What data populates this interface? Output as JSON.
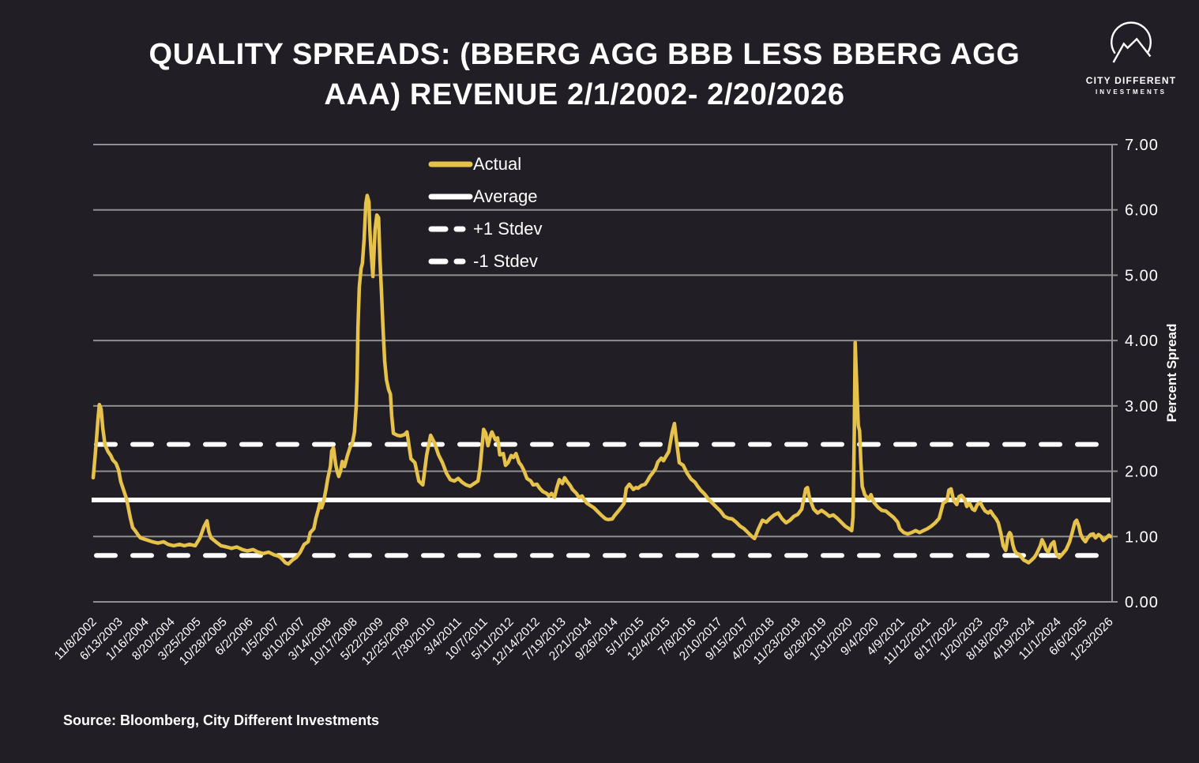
{
  "header": {
    "title_line1": "QUALITY SPREADS: (BBERG AGG BBB LESS BBERG AGG",
    "title_line2": "AAA) REVENUE 2/1/2002- 2/20/2026"
  },
  "logo": {
    "name_line1": "CITY DIFFERENT",
    "name_line2": "INVESTMENTS"
  },
  "footer": {
    "source": "Source: Bloomberg, City Different Investments"
  },
  "colors": {
    "background": "#211f25",
    "actual_line": "#e7c24a",
    "reference_line": "#ffffff",
    "gridline": "#8f8f90",
    "text": "#ffffff"
  },
  "chart_data": {
    "type": "line",
    "title": "QUALITY SPREADS: (BBERG AGG BBB LESS BBERG AGG AAA) REVENUE 2/1/2002- 2/20/2026",
    "ylabel": "Percent Spread",
    "ylim": [
      0.0,
      7.0
    ],
    "yticks": [
      "0.00",
      "1.00",
      "2.00",
      "3.00",
      "4.00",
      "5.00",
      "6.00",
      "7.00"
    ],
    "grid": "horizontal",
    "legend_position": "top-center-inside",
    "xticklabels": [
      "11/8/2002",
      "6/13/2003",
      "1/16/2004",
      "8/20/2004",
      "3/25/2005",
      "10/28/2005",
      "6/2/2006",
      "1/5/2007",
      "8/10/2007",
      "3/14/2008",
      "10/17/2008",
      "5/22/2009",
      "12/25/2009",
      "7/30/2010",
      "3/4/2011",
      "10/7/2011",
      "5/11/2012",
      "12/14/2012",
      "7/19/2013",
      "2/21/2014",
      "9/26/2014",
      "5/1/2015",
      "12/4/2015",
      "7/8/2016",
      "2/10/2017",
      "9/15/2017",
      "4/20/2018",
      "11/23/2018",
      "6/28/2019",
      "1/31/2020",
      "9/4/2020",
      "4/9/2021",
      "11/12/2021",
      "6/17/2022",
      "1/20/2023",
      "8/18/2023",
      "4/19/2024",
      "11/1/2024",
      "6/6/2025",
      "1/23/2026"
    ],
    "xlim_decimal_years": [
      2002.85,
      2026.13
    ],
    "reference_lines": {
      "average": 1.56,
      "plus_1_stdev": 2.41,
      "minus_1_stdev": 0.71
    },
    "legend": [
      {
        "label": "Actual",
        "style": "solid",
        "color": "#e7c24a"
      },
      {
        "label": "Average",
        "style": "solid",
        "color": "#ffffff"
      },
      {
        "label": "+1 Stdev",
        "style": "dashed",
        "color": "#ffffff"
      },
      {
        "label": "-1 Stdev",
        "style": "dashed",
        "color": "#ffffff"
      }
    ],
    "series": [
      {
        "name": "Actual",
        "color": "#e7c24a",
        "x_decimal_years": [
          2002.85,
          2002.89,
          2002.92,
          2002.96,
          2002.99,
          2003.03,
          2003.07,
          2003.12,
          2003.19,
          2003.25,
          2003.3,
          2003.37,
          2003.43,
          2003.48,
          2003.55,
          2003.61,
          2003.64,
          2003.7,
          2003.75,
          2003.82,
          2003.88,
          2003.93,
          2004.02,
          2004.11,
          2004.2,
          2004.33,
          2004.46,
          2004.56,
          2004.69,
          2004.82,
          2004.93,
          2005.05,
          2005.18,
          2005.29,
          2005.38,
          2005.45,
          2005.49,
          2005.54,
          2005.65,
          2005.77,
          2005.9,
          2006.01,
          2006.13,
          2006.26,
          2006.37,
          2006.5,
          2006.62,
          2006.73,
          2006.86,
          2006.98,
          2007.09,
          2007.16,
          2007.24,
          2007.31,
          2007.4,
          2007.49,
          2007.58,
          2007.67,
          2007.76,
          2007.81,
          2007.89,
          2007.94,
          2007.99,
          2008.03,
          2008.07,
          2008.12,
          2008.17,
          2008.21,
          2008.27,
          2008.3,
          2008.34,
          2008.39,
          2008.43,
          2008.46,
          2008.5,
          2008.54,
          2008.59,
          2008.66,
          2008.72,
          2008.77,
          2008.82,
          2008.86,
          2008.88,
          2008.9,
          2008.93,
          2008.97,
          2009.0,
          2009.04,
          2009.08,
          2009.11,
          2009.15,
          2009.17,
          2009.2,
          2009.24,
          2009.29,
          2009.33,
          2009.37,
          2009.4,
          2009.44,
          2009.47,
          2009.51,
          2009.55,
          2009.6,
          2009.64,
          2009.67,
          2009.71,
          2009.8,
          2009.87,
          2009.96,
          2010.02,
          2010.11,
          2010.2,
          2010.29,
          2010.38,
          2010.47,
          2010.56,
          2010.65,
          2010.74,
          2010.83,
          2010.92,
          2011.01,
          2011.1,
          2011.19,
          2011.28,
          2011.37,
          2011.46,
          2011.55,
          2011.64,
          2011.69,
          2011.77,
          2011.82,
          2011.87,
          2011.93,
          2011.96,
          2012.04,
          2012.09,
          2012.14,
          2012.22,
          2012.27,
          2012.33,
          2012.4,
          2012.45,
          2012.51,
          2012.58,
          2012.63,
          2012.69,
          2012.76,
          2012.85,
          2012.9,
          2012.99,
          2013.05,
          2013.12,
          2013.21,
          2013.26,
          2013.32,
          2013.39,
          2013.44,
          2013.5,
          2013.57,
          2013.62,
          2013.68,
          2013.75,
          2013.8,
          2013.89,
          2013.95,
          2014.02,
          2014.07,
          2014.13,
          2014.2,
          2014.29,
          2014.38,
          2014.47,
          2014.56,
          2014.62,
          2014.71,
          2014.76,
          2014.85,
          2014.92,
          2014.98,
          2015.03,
          2015.1,
          2015.19,
          2015.25,
          2015.3,
          2015.37,
          2015.46,
          2015.52,
          2015.57,
          2015.64,
          2015.7,
          2015.75,
          2015.83,
          2015.88,
          2015.93,
          2016.0,
          2016.04,
          2016.08,
          2016.13,
          2016.18,
          2016.24,
          2016.33,
          2016.42,
          2016.51,
          2016.6,
          2016.66,
          2016.73,
          2016.82,
          2016.91,
          2017.0,
          2017.09,
          2017.18,
          2017.27,
          2017.36,
          2017.45,
          2017.54,
          2017.63,
          2017.72,
          2017.81,
          2017.9,
          2017.96,
          2018.05,
          2018.14,
          2018.23,
          2018.32,
          2018.41,
          2018.5,
          2018.59,
          2018.68,
          2018.77,
          2018.86,
          2018.95,
          2019.04,
          2019.13,
          2019.17,
          2019.22,
          2019.31,
          2019.4,
          2019.49,
          2019.58,
          2019.67,
          2019.76,
          2019.85,
          2019.94,
          2020.03,
          2020.12,
          2020.18,
          2020.21,
          2020.24,
          2020.26,
          2020.29,
          2020.33,
          2020.36,
          2020.39,
          2020.42,
          2020.48,
          2020.57,
          2020.62,
          2020.69,
          2020.78,
          2020.87,
          2020.96,
          2021.05,
          2021.14,
          2021.23,
          2021.28,
          2021.37,
          2021.46,
          2021.55,
          2021.64,
          2021.73,
          2021.82,
          2021.91,
          2022.0,
          2022.09,
          2022.18,
          2022.27,
          2022.36,
          2022.4,
          2022.45,
          2022.51,
          2022.58,
          2022.63,
          2022.69,
          2022.76,
          2022.81,
          2022.87,
          2022.94,
          2022.99,
          2023.05,
          2023.12,
          2023.17,
          2023.23,
          2023.3,
          2023.35,
          2023.41,
          2023.48,
          2023.53,
          2023.59,
          2023.64,
          2023.7,
          2023.75,
          2023.79,
          2023.82,
          2023.86,
          2023.9,
          2023.95,
          2024.0,
          2024.06,
          2024.11,
          2024.17,
          2024.22,
          2024.29,
          2024.35,
          2024.4,
          2024.45,
          2024.49,
          2024.53,
          2024.58,
          2024.62,
          2024.67,
          2024.74,
          2024.8,
          2024.85,
          2024.92,
          2024.98,
          2025.03,
          2025.08,
          2025.16,
          2025.21,
          2025.28,
          2025.32,
          2025.37,
          2025.41,
          2025.46,
          2025.52,
          2025.57,
          2025.64,
          2025.7,
          2025.75,
          2025.82,
          2025.88,
          2025.93,
          2026.0,
          2026.06,
          2026.09
        ],
        "values": [
          1.9,
          2.2,
          2.45,
          2.8,
          3.02,
          2.95,
          2.65,
          2.4,
          2.3,
          2.24,
          2.17,
          2.12,
          2.02,
          1.84,
          1.7,
          1.58,
          1.48,
          1.28,
          1.14,
          1.08,
          1.02,
          0.98,
          0.96,
          0.94,
          0.92,
          0.9,
          0.92,
          0.88,
          0.86,
          0.88,
          0.86,
          0.88,
          0.86,
          0.98,
          1.15,
          1.24,
          1.08,
          0.98,
          0.92,
          0.86,
          0.84,
          0.82,
          0.84,
          0.8,
          0.78,
          0.8,
          0.76,
          0.74,
          0.76,
          0.72,
          0.7,
          0.66,
          0.6,
          0.58,
          0.64,
          0.68,
          0.76,
          0.88,
          0.92,
          1.06,
          1.12,
          1.28,
          1.4,
          1.51,
          1.44,
          1.55,
          1.73,
          1.89,
          2.07,
          2.31,
          2.36,
          2.1,
          1.98,
          1.92,
          2.0,
          2.15,
          2.07,
          2.24,
          2.37,
          2.42,
          2.6,
          3.0,
          3.4,
          4.2,
          4.82,
          5.1,
          5.18,
          5.55,
          6.1,
          6.22,
          6.12,
          5.7,
          5.34,
          4.98,
          5.7,
          5.92,
          5.88,
          5.26,
          4.68,
          4.22,
          3.69,
          3.4,
          3.25,
          3.18,
          2.85,
          2.58,
          2.55,
          2.54,
          2.56,
          2.6,
          2.19,
          2.13,
          1.85,
          1.79,
          2.25,
          2.55,
          2.43,
          2.25,
          2.13,
          1.97,
          1.87,
          1.85,
          1.89,
          1.83,
          1.79,
          1.77,
          1.81,
          1.85,
          2.05,
          2.64,
          2.58,
          2.39,
          2.55,
          2.6,
          2.48,
          2.51,
          2.25,
          2.27,
          2.09,
          2.13,
          2.24,
          2.21,
          2.27,
          2.13,
          2.09,
          2.01,
          1.89,
          1.85,
          1.79,
          1.8,
          1.74,
          1.69,
          1.66,
          1.62,
          1.66,
          1.6,
          1.74,
          1.87,
          1.81,
          1.9,
          1.84,
          1.78,
          1.72,
          1.66,
          1.6,
          1.62,
          1.56,
          1.51,
          1.48,
          1.44,
          1.38,
          1.32,
          1.27,
          1.26,
          1.27,
          1.32,
          1.39,
          1.45,
          1.51,
          1.74,
          1.8,
          1.72,
          1.75,
          1.74,
          1.78,
          1.8,
          1.86,
          1.92,
          1.98,
          2.04,
          2.14,
          2.2,
          2.16,
          2.22,
          2.3,
          2.45,
          2.6,
          2.73,
          2.45,
          2.13,
          2.09,
          1.97,
          1.88,
          1.83,
          1.77,
          1.71,
          1.65,
          1.57,
          1.51,
          1.45,
          1.39,
          1.31,
          1.28,
          1.27,
          1.22,
          1.16,
          1.12,
          1.06,
          1.0,
          0.97,
          1.12,
          1.25,
          1.22,
          1.28,
          1.33,
          1.36,
          1.27,
          1.21,
          1.25,
          1.31,
          1.34,
          1.42,
          1.73,
          1.75,
          1.58,
          1.42,
          1.36,
          1.4,
          1.36,
          1.31,
          1.33,
          1.28,
          1.22,
          1.16,
          1.12,
          1.09,
          1.3,
          2.6,
          3.97,
          3.4,
          2.7,
          2.62,
          2.13,
          1.77,
          1.64,
          1.57,
          1.64,
          1.52,
          1.45,
          1.4,
          1.39,
          1.34,
          1.29,
          1.22,
          1.12,
          1.06,
          1.04,
          1.06,
          1.09,
          1.06,
          1.09,
          1.12,
          1.16,
          1.21,
          1.28,
          1.51,
          1.55,
          1.71,
          1.73,
          1.55,
          1.49,
          1.61,
          1.63,
          1.57,
          1.46,
          1.51,
          1.42,
          1.4,
          1.49,
          1.52,
          1.45,
          1.39,
          1.36,
          1.39,
          1.33,
          1.27,
          1.21,
          1.04,
          0.86,
          0.79,
          1.0,
          1.06,
          1.03,
          0.88,
          0.79,
          0.74,
          0.73,
          0.68,
          0.64,
          0.62,
          0.6,
          0.64,
          0.68,
          0.73,
          0.8,
          0.86,
          0.95,
          0.88,
          0.8,
          0.76,
          0.88,
          0.92,
          0.74,
          0.68,
          0.72,
          0.76,
          0.8,
          0.92,
          1.04,
          1.22,
          1.25,
          1.16,
          1.04,
          0.97,
          0.92,
          0.98,
          1.03,
          1.04,
          0.98,
          1.03,
          1.0,
          0.94,
          0.98,
          1.02,
          1.0
        ]
      }
    ]
  }
}
